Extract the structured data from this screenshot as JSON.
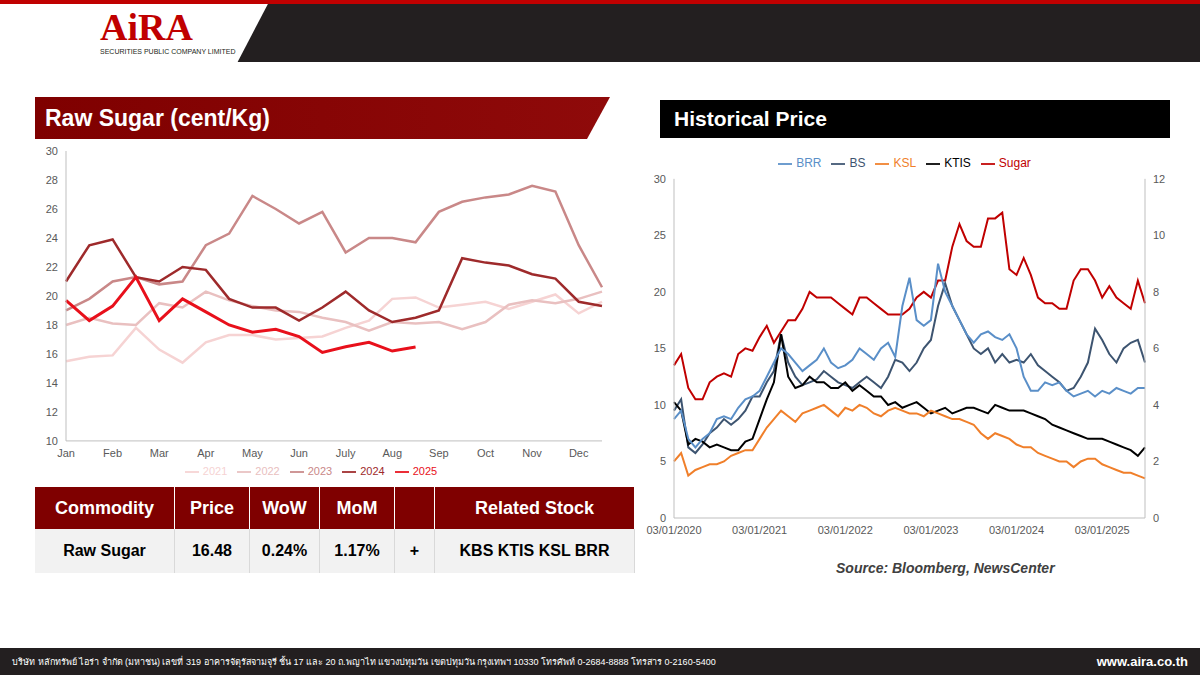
{
  "header": {
    "logo": "AiRA",
    "company": "SECURITIES PUBLIC COMPANY LIMITED"
  },
  "chart_data": [
    {
      "type": "line",
      "title": "Raw Sugar (cent/Kg)",
      "categories": [
        "Jan",
        null,
        "Feb",
        null,
        "Mar",
        null,
        "Apr",
        null,
        "May",
        null,
        "Jun",
        null,
        "July",
        null,
        "Aug",
        null,
        "Sep",
        null,
        "Oct",
        null,
        "Nov",
        null,
        "Dec",
        null
      ],
      "ylim": [
        10,
        30
      ],
      "yticks": [
        10,
        12,
        14,
        16,
        18,
        20,
        22,
        24,
        26,
        28,
        30
      ],
      "grid": false,
      "legend": "bottom",
      "series": [
        {
          "name": "2021",
          "color": "#f6d3d3",
          "values": [
            15.5,
            15.8,
            15.9,
            17.8,
            16.3,
            15.4,
            16.8,
            17.3,
            17.3,
            17.0,
            17.1,
            17.2,
            17.8,
            18.3,
            19.8,
            19.9,
            19.2,
            19.4,
            19.6,
            19.1,
            19.6,
            20.1,
            18.8,
            19.6
          ]
        },
        {
          "name": "2022",
          "color": "#e9c0c0",
          "values": [
            18.0,
            18.5,
            18.1,
            18.0,
            19.5,
            19.2,
            20.3,
            19.7,
            19.3,
            19.0,
            18.9,
            18.5,
            18.2,
            17.6,
            18.2,
            18.1,
            18.2,
            17.7,
            18.2,
            19.4,
            19.7,
            19.5,
            19.8,
            20.3
          ]
        },
        {
          "name": "2023",
          "color": "#c98888",
          "values": [
            19.0,
            19.8,
            21.0,
            21.3,
            20.8,
            21.0,
            23.5,
            24.3,
            26.9,
            26.0,
            25.0,
            25.8,
            23.0,
            24.0,
            24.0,
            23.7,
            25.8,
            26.5,
            26.8,
            27.0,
            27.6,
            27.2,
            23.5,
            20.6
          ]
        },
        {
          "name": "2024",
          "color": "#9e2a2b",
          "values": [
            21.0,
            23.5,
            23.9,
            21.3,
            21.0,
            22.0,
            21.8,
            19.8,
            19.2,
            19.2,
            18.3,
            19.2,
            20.3,
            19.0,
            18.2,
            18.5,
            19.0,
            22.6,
            22.3,
            22.1,
            21.5,
            21.2,
            19.6,
            19.3
          ]
        },
        {
          "name": "2025",
          "color": "#e8101b",
          "values": [
            19.7,
            18.3,
            19.3,
            21.3,
            18.3,
            19.8,
            18.9,
            18.0,
            17.5,
            17.7,
            17.2,
            16.1,
            16.5,
            16.8,
            16.2,
            16.48,
            null,
            null,
            null,
            null,
            null,
            null,
            null,
            null
          ]
        }
      ]
    },
    {
      "type": "line",
      "title": "Historical Price",
      "categories": [
        "03/01/2020",
        null,
        null,
        null,
        null,
        null,
        null,
        null,
        null,
        null,
        null,
        null,
        "03/01/2021",
        null,
        null,
        null,
        null,
        null,
        null,
        null,
        null,
        null,
        null,
        null,
        "03/01/2022",
        null,
        null,
        null,
        null,
        null,
        null,
        null,
        null,
        null,
        null,
        null,
        "03/01/2023",
        null,
        null,
        null,
        null,
        null,
        null,
        null,
        null,
        null,
        null,
        null,
        "03/01/2024",
        null,
        null,
        null,
        null,
        null,
        null,
        null,
        null,
        null,
        null,
        null,
        "03/01/2025",
        null,
        null,
        null,
        null,
        null,
        null
      ],
      "ylim": [
        0,
        30
      ],
      "yticks": [
        0,
        5,
        10,
        15,
        20,
        25,
        30
      ],
      "y2lim": [
        0,
        12
      ],
      "y2ticks": [
        0,
        2,
        4,
        6,
        8,
        10,
        12
      ],
      "grid": false,
      "legend": "top",
      "series": [
        {
          "name": "Sugar",
          "color": "#c00000",
          "values": [
            13.5,
            14.5,
            11.5,
            10.5,
            10.5,
            12,
            12.5,
            12.8,
            12.5,
            14.5,
            15,
            14.8,
            16,
            17,
            15.5,
            16.5,
            17.5,
            17.5,
            18.5,
            20,
            19.5,
            19.5,
            19.5,
            19,
            18.5,
            18,
            19.5,
            19.5,
            19,
            18.5,
            18,
            18,
            18,
            18.5,
            19.5,
            20,
            19.5,
            21,
            21,
            24,
            26,
            24.5,
            24,
            24,
            26.5,
            26.5,
            27,
            22,
            21.5,
            23,
            21.5,
            19.5,
            19,
            19,
            18.5,
            18.5,
            21,
            22,
            22,
            21,
            19.5,
            20.5,
            19.5,
            19,
            18.5,
            21,
            19
          ]
        },
        {
          "name": "BS",
          "color": "#3d5470",
          "axis": "y2",
          "values": [
            3.8,
            4.2,
            2.5,
            2.3,
            2.6,
            3.0,
            3.2,
            3.5,
            3.3,
            3.5,
            3.8,
            4.3,
            4.3,
            4.8,
            5.2,
            6.5,
            5.5,
            5.0,
            4.7,
            4.8,
            4.9,
            5.2,
            5.0,
            4.8,
            4.7,
            4.6,
            4.8,
            5.0,
            4.8,
            4.6,
            5.0,
            5.6,
            5.5,
            5.2,
            5.5,
            6.0,
            6.3,
            7.5,
            8.3,
            7.5,
            7.0,
            6.5,
            6.0,
            5.8,
            6.0,
            5.5,
            5.8,
            5.5,
            5.6,
            5.5,
            5.8,
            5.4,
            5.2,
            5.0,
            4.8,
            4.5,
            4.6,
            5.0,
            5.5,
            6.7,
            6.3,
            5.8,
            5.5,
            6.0,
            6.2,
            6.3,
            5.5
          ]
        },
        {
          "name": "KTIS",
          "color": "#000000",
          "axis": "y2",
          "values": [
            4.1,
            3.8,
            2.6,
            2.8,
            2.7,
            2.5,
            2.6,
            2.5,
            2.4,
            2.4,
            2.7,
            2.8,
            3.5,
            4.2,
            4.8,
            6.5,
            5.0,
            4.6,
            4.7,
            5.0,
            4.8,
            4.8,
            4.6,
            4.6,
            4.8,
            4.5,
            4.7,
            4.5,
            4.3,
            4.3,
            4.0,
            4.1,
            3.9,
            4.0,
            4.1,
            3.9,
            3.7,
            3.8,
            3.9,
            3.7,
            3.8,
            3.9,
            3.9,
            3.8,
            3.7,
            4.0,
            3.9,
            3.8,
            3.8,
            3.8,
            3.7,
            3.6,
            3.5,
            3.3,
            3.2,
            3.1,
            3.0,
            2.9,
            2.8,
            2.8,
            2.8,
            2.7,
            2.6,
            2.5,
            2.4,
            2.2,
            2.5
          ]
        },
        {
          "name": "KSL",
          "color": "#f07f2a",
          "axis": "y2",
          "values": [
            2.0,
            2.3,
            1.5,
            1.7,
            1.8,
            1.9,
            1.9,
            2.0,
            2.2,
            2.3,
            2.4,
            2.4,
            2.8,
            3.2,
            3.5,
            3.8,
            3.6,
            3.4,
            3.7,
            3.8,
            3.9,
            4.0,
            3.8,
            3.6,
            3.9,
            3.8,
            4.0,
            3.9,
            3.7,
            3.6,
            3.8,
            3.9,
            3.8,
            3.7,
            3.7,
            3.6,
            3.8,
            3.7,
            3.6,
            3.5,
            3.5,
            3.4,
            3.3,
            3.0,
            2.8,
            3.0,
            2.9,
            2.8,
            2.6,
            2.5,
            2.5,
            2.3,
            2.2,
            2.1,
            2.0,
            2.0,
            1.8,
            2.0,
            2.1,
            2.1,
            1.9,
            1.8,
            1.7,
            1.6,
            1.6,
            1.5,
            1.4
          ]
        },
        {
          "name": "BRR",
          "color": "#5a8fc8",
          "axis": "y2",
          "values": [
            3.5,
            3.8,
            2.8,
            2.5,
            2.8,
            3.0,
            3.5,
            3.6,
            3.5,
            3.9,
            4.2,
            4.3,
            4.5,
            5.0,
            5.5,
            6.0,
            5.8,
            5.5,
            5.2,
            5.4,
            5.6,
            6.0,
            5.5,
            5.3,
            5.4,
            5.6,
            6.0,
            5.8,
            5.6,
            6.0,
            6.2,
            5.7,
            7.5,
            8.5,
            7.0,
            6.8,
            7.0,
            9.0,
            8.0,
            7.5,
            7.0,
            6.5,
            6.2,
            6.5,
            6.6,
            6.4,
            6.3,
            6.5,
            6.0,
            5.0,
            4.5,
            4.5,
            4.8,
            4.7,
            4.8,
            4.5,
            4.3,
            4.4,
            4.5,
            4.3,
            4.5,
            4.4,
            4.6,
            4.5,
            4.4,
            4.6,
            4.6
          ]
        }
      ]
    }
  ],
  "source": "Source: Bloomberg, NewsCenter",
  "table": {
    "header": [
      "Commodity",
      "Price",
      "WoW",
      "MoM",
      null,
      "Related Stock"
    ],
    "rows": [
      [
        "Raw Sugar",
        "16.48",
        "0.24%",
        "1.17%",
        "+",
        "KBS KTIS KSL BRR"
      ]
    ]
  },
  "footer": {
    "address": "บริษัท หลักทรัพย์ ไอร่า จำกัด (มหาชน) เลขที่ 319 อาคารจัตุรัสจามจุรี ชั้น 17 และ 20 ถ.พญาไท แขวงปทุมวัน เขตปทุมวัน กรุงเทพฯ 10330 โทรศัพท์ 0-2684-8888 โทรสาร 0-2160-5400",
    "website": "www.aira.co.th"
  }
}
